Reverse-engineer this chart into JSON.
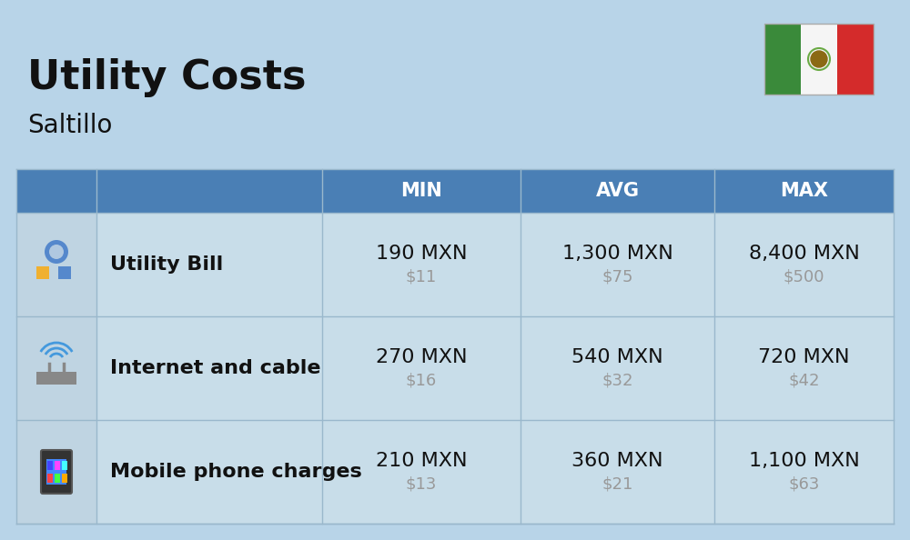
{
  "title": "Utility Costs",
  "subtitle": "Saltillo",
  "background_color": "#b8d4e8",
  "header_bg_color": "#4a7fb5",
  "header_text_color": "#ffffff",
  "row_bg_even": "#c5daea",
  "row_bg_odd": "#bbd2e4",
  "col_headers": [
    "MIN",
    "AVG",
    "MAX"
  ],
  "rows": [
    {
      "label": "Utility Bill",
      "min_mxn": "190 MXN",
      "min_usd": "$11",
      "avg_mxn": "1,300 MXN",
      "avg_usd": "$75",
      "max_mxn": "8,400 MXN",
      "max_usd": "$500",
      "icon": "utility"
    },
    {
      "label": "Internet and cable",
      "min_mxn": "270 MXN",
      "min_usd": "$16",
      "avg_mxn": "540 MXN",
      "avg_usd": "$32",
      "max_mxn": "720 MXN",
      "max_usd": "$42",
      "icon": "internet"
    },
    {
      "label": "Mobile phone charges",
      "min_mxn": "210 MXN",
      "min_usd": "$13",
      "avg_mxn": "360 MXN",
      "avg_usd": "$21",
      "max_mxn": "1,100 MXN",
      "max_usd": "$63",
      "icon": "mobile"
    }
  ],
  "title_fontsize": 32,
  "subtitle_fontsize": 20,
  "header_fontsize": 15,
  "cell_main_fontsize": 16,
  "cell_sub_fontsize": 13,
  "label_fontsize": 16,
  "flag_green": "#4caf50",
  "flag_white": "#ffffff",
  "flag_red": "#f44336",
  "usd_color": "#999999",
  "text_dark": "#111111",
  "line_color": "#9ab8cc"
}
